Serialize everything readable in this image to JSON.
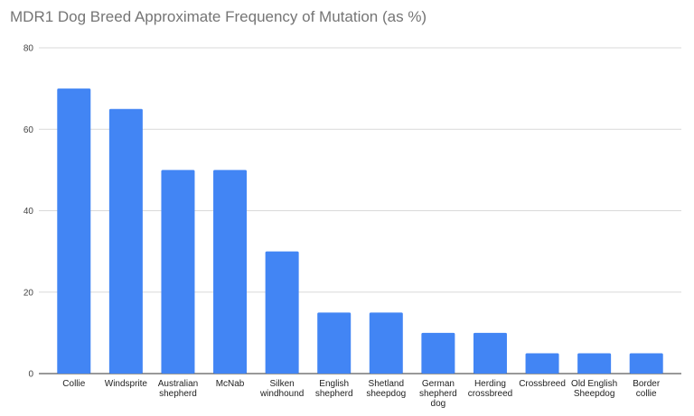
{
  "chart_data": {
    "type": "bar",
    "title": "MDR1 Dog Breed Approximate Frequency of Mutation (as %)",
    "xlabel": "",
    "ylabel": "",
    "categories": [
      [
        "Collie"
      ],
      [
        "Windsprite"
      ],
      [
        "Australian",
        "shepherd"
      ],
      [
        "McNab"
      ],
      [
        "Silken",
        "windhound"
      ],
      [
        "English",
        "shepherd"
      ],
      [
        "Shetland",
        "sheepdog"
      ],
      [
        "German",
        "shepherd",
        "dog"
      ],
      [
        "Herding",
        "crossbreed"
      ],
      [
        "Crossbreed"
      ],
      [
        "Old English",
        "Sheepdog"
      ],
      [
        "Border",
        "collie"
      ]
    ],
    "values": [
      70,
      65,
      50,
      50,
      30,
      15,
      15,
      10,
      10,
      5,
      5,
      5
    ],
    "ylim": [
      0,
      80
    ],
    "yticks": [
      "0",
      "20",
      "40",
      "60",
      "80"
    ],
    "grid": true,
    "legend": "none",
    "colors": {
      "bar": "#4285f4",
      "grid": "#d9d9d9",
      "baseline": "#333333"
    }
  }
}
